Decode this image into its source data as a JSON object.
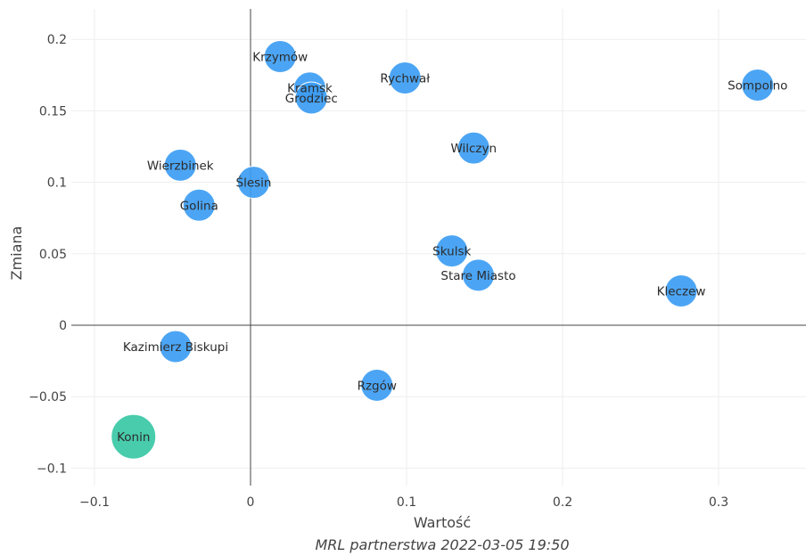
{
  "chart_data": {
    "type": "scatter",
    "xlabel": "Wartość",
    "ylabel": "Zmiana",
    "caption": "MRL partnerstwa 2022-03-05 19:50",
    "xlim": [
      -0.11,
      0.355
    ],
    "ylim": [
      -0.105,
      0.22
    ],
    "x_ticks": [
      -0.1,
      0,
      0.1,
      0.2,
      0.3
    ],
    "x_tick_labels": [
      "−0.1",
      "0",
      "0.1",
      "0.2",
      "0.3"
    ],
    "y_ticks": [
      -0.1,
      -0.05,
      0,
      0.05,
      0.1,
      0.15,
      0.2
    ],
    "y_tick_labels": [
      "−0.1",
      "−0.05",
      "0",
      "0.05",
      "0.1",
      "0.15",
      "0.2"
    ],
    "grid": true,
    "colors": {
      "default": "#3d9df3",
      "highlight": "#3ec9a8"
    },
    "points": [
      {
        "label": "Krzymów",
        "x": 0.019,
        "y": 0.188
      },
      {
        "label": "Kramsk",
        "x": 0.038,
        "y": 0.166
      },
      {
        "label": "Grodziec",
        "x": 0.039,
        "y": 0.159
      },
      {
        "label": "Rychwał",
        "x": 0.099,
        "y": 0.173
      },
      {
        "label": "Sompolno",
        "x": 0.325,
        "y": 0.168
      },
      {
        "label": "Wilczyn",
        "x": 0.143,
        "y": 0.124
      },
      {
        "label": "Wierzbinek",
        "x": -0.045,
        "y": 0.112
      },
      {
        "label": "Ślesin",
        "x": 0.002,
        "y": 0.1
      },
      {
        "label": "Golina",
        "x": -0.033,
        "y": 0.084
      },
      {
        "label": "Skulsk",
        "x": 0.129,
        "y": 0.052
      },
      {
        "label": "Stare Miasto",
        "x": 0.146,
        "y": 0.035
      },
      {
        "label": "Kleczew",
        "x": 0.276,
        "y": 0.024
      },
      {
        "label": "Kazimierz Biskupi",
        "x": -0.048,
        "y": -0.015
      },
      {
        "label": "Rzgów",
        "x": 0.081,
        "y": -0.042
      },
      {
        "label": "Konin",
        "x": -0.075,
        "y": -0.078,
        "highlight": true
      }
    ]
  }
}
